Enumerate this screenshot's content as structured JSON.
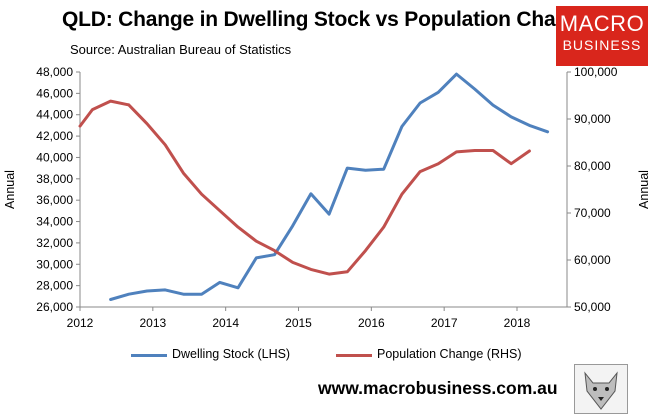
{
  "header": {
    "title": "QLD: Change in Dwelling Stock vs Population Change",
    "source": "Source: Australian Bureau of Statistics"
  },
  "logo": {
    "line1": "MACRO",
    "line2": "BUSINESS",
    "color": "#d9261c"
  },
  "footer": {
    "url": "www.macrobusiness.com.au"
  },
  "chart_data": {
    "type": "line",
    "title": "QLD: Change in Dwelling Stock vs Population Change",
    "xlabel": "",
    "ylabel_left": "Annual",
    "ylabel_right": "Annual",
    "x_ticks": [
      "2012",
      "2013",
      "2014",
      "2015",
      "2016",
      "2017",
      "2018"
    ],
    "xlim": [
      2012.0,
      2019.0
    ],
    "ylim_left": [
      26000,
      48000
    ],
    "ylim_right": [
      50000,
      100000
    ],
    "left_ticks": [
      "26,000",
      "28,000",
      "30,000",
      "32,000",
      "34,000",
      "36,000",
      "38,000",
      "40,000",
      "42,000",
      "44,000",
      "46,000",
      "48,000"
    ],
    "right_ticks": [
      "50,000",
      "60,000",
      "70,000",
      "80,000",
      "90,000",
      "100,000"
    ],
    "grid": false,
    "series": [
      {
        "name": "Dwelling Stock (LHS)",
        "axis": "left",
        "color": "#4f81bd",
        "x": [
          2012.42,
          2012.67,
          2012.92,
          2013.17,
          2013.42,
          2013.67,
          2013.92,
          2014.17,
          2014.42,
          2014.67,
          2014.92,
          2015.17,
          2015.42,
          2015.67,
          2015.92,
          2016.17,
          2016.42,
          2016.67,
          2016.92,
          2017.17,
          2017.42,
          2017.67,
          2017.92,
          2018.17,
          2018.42
        ],
        "values": [
          26700,
          27200,
          27500,
          27600,
          27200,
          27200,
          28300,
          27800,
          30600,
          30900,
          33600,
          36600,
          34700,
          39000,
          38800,
          38900,
          42900,
          45100,
          46100,
          47800,
          46400,
          44900,
          43800,
          43000,
          42400
        ]
      },
      {
        "name": "Population Change (RHS)",
        "axis": "right",
        "color": "#c0504d",
        "x": [
          2012.0,
          2012.17,
          2012.42,
          2012.67,
          2012.92,
          2013.17,
          2013.42,
          2013.67,
          2013.92,
          2014.17,
          2014.42,
          2014.67,
          2014.92,
          2015.17,
          2015.42,
          2015.67,
          2015.92,
          2016.17,
          2016.42,
          2016.67,
          2016.92,
          2017.17,
          2017.42,
          2017.67,
          2017.92,
          2018.17
        ],
        "values": [
          88500,
          92000,
          93800,
          93000,
          89000,
          84500,
          78500,
          74000,
          70500,
          67000,
          64000,
          62000,
          59500,
          58000,
          57000,
          57500,
          62000,
          67000,
          74000,
          78800,
          80500,
          83000,
          83300,
          83300,
          80500,
          83200
        ]
      }
    ],
    "legend": [
      "Dwelling Stock (LHS)",
      "Population Change (RHS)"
    ],
    "legend_position": "bottom"
  }
}
